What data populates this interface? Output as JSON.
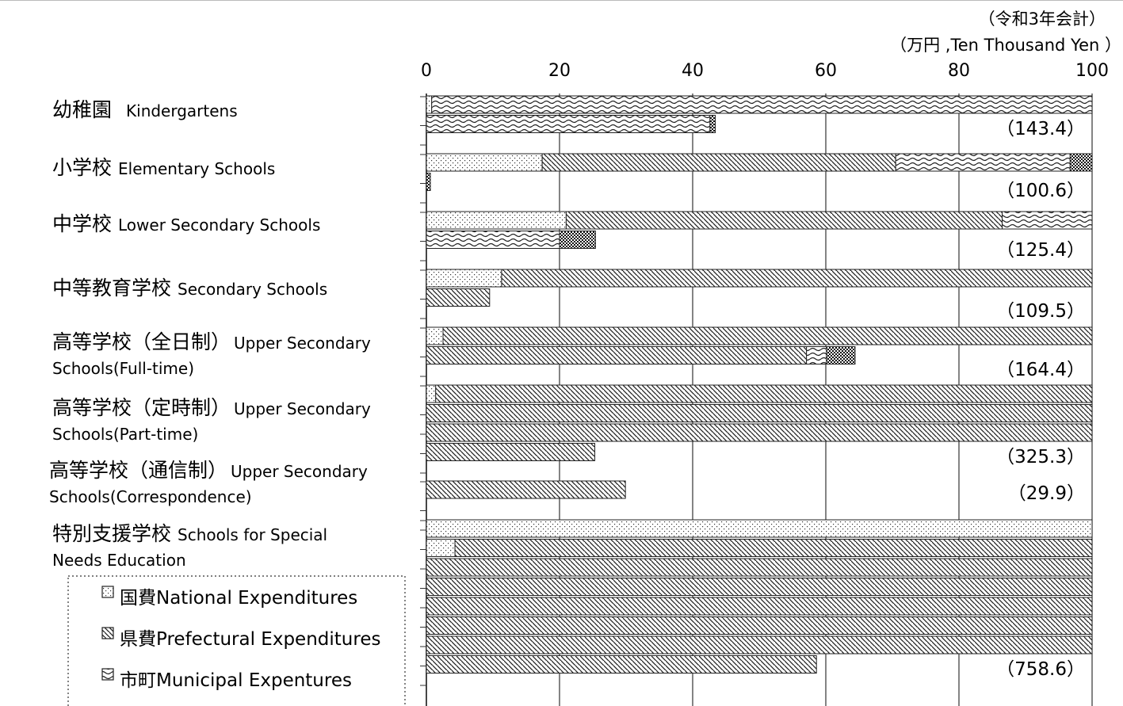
{
  "chart_data": {
    "type": "bar",
    "orientation": "horizontal",
    "stacked": true,
    "wrapped": true,
    "unit_line1": "（令和3年会計）",
    "unit_line2": "（万円 ,Ten Thousand  Yen ）",
    "xlim": [
      0,
      100
    ],
    "ticks": [
      "0",
      "20",
      "40",
      "60",
      "80",
      "100"
    ],
    "tick_values": [
      0,
      20,
      40,
      60,
      80,
      100
    ],
    "grid": true,
    "legend": [
      {
        "key": "national",
        "label": "国費National Expenditures"
      },
      {
        "key": "prefectural",
        "label": "県費Prefectural Expenditures"
      },
      {
        "key": "municipal",
        "label": "市町Municipal Expentures"
      }
    ],
    "categories": [
      {
        "jp": "幼稚園",
        "en1": "Kindergartens",
        "en2": "",
        "total_label": "（143.4）",
        "total": 143.4,
        "segments": [
          {
            "series": "national",
            "value": 0.8
          },
          {
            "series": "prefectural",
            "value": 0.0
          },
          {
            "series": "municipal",
            "value": 141.8
          },
          {
            "series": "other",
            "value": 0.8
          }
        ]
      },
      {
        "jp": "小学校",
        "en1": "Elementary Schools",
        "en2": "",
        "total_label": "（100.6）",
        "total": 100.6,
        "segments": [
          {
            "series": "national",
            "value": 17.4
          },
          {
            "series": "prefectural",
            "value": 53.1
          },
          {
            "series": "municipal",
            "value": 26.2
          },
          {
            "series": "other",
            "value": 3.9
          }
        ]
      },
      {
        "jp": "中学校",
        "en1": "Lower Secondary Schools",
        "en2": "",
        "total_label": "（125.4）",
        "total": 125.4,
        "segments": [
          {
            "series": "national",
            "value": 21.0
          },
          {
            "series": "prefectural",
            "value": 65.5
          },
          {
            "series": "municipal",
            "value": 33.5
          },
          {
            "series": "other",
            "value": 5.4
          }
        ]
      },
      {
        "jp": "中等教育学校",
        "en1": "Secondary Schools",
        "en2": "",
        "total_label": "（109.5）",
        "total": 109.5,
        "segments": [
          {
            "series": "national",
            "value": 11.3
          },
          {
            "series": "prefectural",
            "value": 98.2
          }
        ]
      },
      {
        "jp": "高等学校（全日制）",
        "en1": "Upper Secondary",
        "en2": "Schools(Full-time)",
        "total_label": "（164.4）",
        "total": 164.4,
        "segments": [
          {
            "series": "national",
            "value": 2.5
          },
          {
            "series": "prefectural",
            "value": 154.6
          },
          {
            "series": "municipal",
            "value": 3.0
          },
          {
            "series": "other",
            "value": 4.3
          }
        ]
      },
      {
        "jp": "高等学校（定時制）",
        "en1": "Upper Secondary",
        "en2": "Schools(Part-time)",
        "total_label": "（325.3）",
        "total": 325.3,
        "segments": [
          {
            "series": "national",
            "value": 1.4
          },
          {
            "series": "prefectural",
            "value": 323.9
          }
        ]
      },
      {
        "jp": "高等学校（通信制）",
        "en1": "Upper Secondary",
        "en2": "Schools(Correspondence)",
        "total_label": "（29.9）",
        "total": 29.9,
        "segments": [
          {
            "series": "prefectural",
            "value": 29.9
          }
        ]
      },
      {
        "jp": "特別支援学校",
        "en1": "Schools for  Special",
        "en2": "Needs Education",
        "total_label": "（758.6）",
        "total": 758.6,
        "segments": [
          {
            "series": "national",
            "value": 104.3
          },
          {
            "series": "prefectural",
            "value": 654.3
          }
        ]
      }
    ]
  }
}
